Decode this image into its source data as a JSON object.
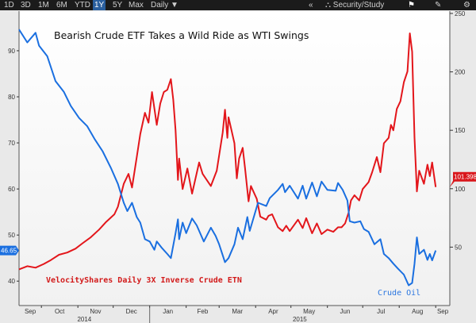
{
  "toolbar": {
    "ranges": [
      "1D",
      "3D",
      "1M",
      "6M",
      "YTD",
      "1Y",
      "5Y",
      "Max"
    ],
    "active_range": "1Y",
    "frequency": "Daily",
    "collapse_label": "«",
    "security_study_label": "Security/Study"
  },
  "chart_data": {
    "type": "line",
    "title": "Bearish Crude ETF Takes a Wild Ride as WTI Swings",
    "x_tick_labels": [
      "Sep",
      "Oct",
      "Nov",
      "Dec",
      "Jan",
      "Feb",
      "Mar",
      "Apr",
      "May",
      "Jun",
      "Jul",
      "Aug",
      "Sep"
    ],
    "x_year_labels": [
      "2014",
      "2015"
    ],
    "xlim": [
      "2014-09-12",
      "2015-09-13"
    ],
    "left_axis": {
      "ticks": [
        40,
        50,
        60,
        70,
        80,
        90
      ],
      "ylim": [
        34.7,
        98.6
      ]
    },
    "right_axis": {
      "ticks": [
        50,
        100,
        150,
        200,
        250
      ],
      "ylim": [
        0,
        252
      ]
    },
    "grid": false,
    "series": [
      {
        "name": "VelocityShares Daily 3X Inverse Crude ETN",
        "axis": "right",
        "color": "#e3161b",
        "last_value_label": "101.398",
        "x": [
          "2014-09-12",
          "2014-09-19",
          "2014-09-26",
          "2014-10-03",
          "2014-10-09",
          "2014-10-16",
          "2014-10-23",
          "2014-10-30",
          "2014-11-05",
          "2014-11-12",
          "2014-11-19",
          "2014-11-25",
          "2014-12-02",
          "2014-12-05",
          "2014-12-10",
          "2014-12-14",
          "2014-12-17",
          "2014-12-21",
          "2014-12-24",
          "2014-12-28",
          "2014-12-31",
          "2015-01-03",
          "2015-01-07",
          "2015-01-10",
          "2015-01-13",
          "2015-01-16",
          "2015-01-19",
          "2015-01-21",
          "2015-01-23",
          "2015-01-25",
          "2015-01-26",
          "2015-01-29",
          "2015-02-02",
          "2015-02-06",
          "2015-02-12",
          "2015-02-15",
          "2015-02-22",
          "2015-02-27",
          "2015-03-04",
          "2015-03-06",
          "2015-03-08",
          "2015-03-09",
          "2015-03-14",
          "2015-03-16",
          "2015-03-18",
          "2015-03-21",
          "2015-03-23",
          "2015-03-26",
          "2015-03-28",
          "2015-04-02",
          "2015-04-05",
          "2015-04-10",
          "2015-04-12",
          "2015-04-15",
          "2015-04-20",
          "2015-04-24",
          "2015-04-27",
          "2015-04-30",
          "2015-05-07",
          "2015-05-11",
          "2015-05-14",
          "2015-05-19",
          "2015-05-23",
          "2015-05-27",
          "2015-06-01",
          "2015-06-06",
          "2015-06-10",
          "2015-06-13",
          "2015-06-16",
          "2015-06-19",
          "2015-06-21",
          "2015-06-24",
          "2015-06-28",
          "2015-07-01",
          "2015-07-06",
          "2015-07-09",
          "2015-07-13",
          "2015-07-16",
          "2015-07-19",
          "2015-07-23",
          "2015-07-25",
          "2015-07-27",
          "2015-07-30",
          "2015-08-02",
          "2015-08-05",
          "2015-08-08",
          "2015-08-10",
          "2015-08-12",
          "2015-08-14",
          "2015-08-16",
          "2015-08-18",
          "2015-08-22",
          "2015-08-25",
          "2015-08-27",
          "2015-08-29",
          "2015-09-01"
        ],
        "values": [
          31.0,
          33.7,
          32.4,
          35.6,
          38.9,
          43.5,
          45.4,
          48.7,
          53.3,
          58.5,
          65.0,
          71.6,
          78.1,
          84.6,
          104.2,
          112.7,
          101.0,
          127.1,
          146.7,
          165.0,
          156.5,
          182.7,
          154.6,
          172.9,
          182.7,
          184.6,
          193.8,
          176.1,
          150.0,
          107.5,
          125.8,
          99.7,
          117.3,
          95.8,
          122.5,
          112.7,
          102.3,
          115.4,
          148.0,
          167.6,
          143.5,
          161.1,
          138.9,
          108.8,
          125.8,
          135.0,
          117.3,
          89.2,
          102.3,
          91.2,
          76.1,
          73.5,
          76.8,
          78.1,
          67.0,
          63.7,
          68.3,
          63.7,
          73.5,
          66.3,
          74.8,
          61.8,
          70.3,
          61.1,
          65.0,
          63.1,
          67.0,
          67.0,
          70.3,
          79.4,
          89.9,
          94.4,
          89.9,
          99.7,
          105.6,
          114.1,
          127.1,
          114.1,
          138.9,
          143.5,
          154.6,
          150.0,
          168.3,
          174.8,
          191.2,
          200.3,
          233.0,
          217.3,
          143.5,
          97.7,
          115.4,
          104.2,
          120.6,
          110.8,
          122.5,
          101.398
        ]
      },
      {
        "name": "Crude Oil",
        "axis": "left",
        "color": "#1a6fe0",
        "last_value_label": "46.65",
        "x": [
          "2014-09-12",
          "2014-09-19",
          "2014-09-26",
          "2014-09-29",
          "2014-10-06",
          "2014-10-13",
          "2014-10-20",
          "2014-10-26",
          "2014-11-02",
          "2014-11-09",
          "2014-11-15",
          "2014-11-22",
          "2014-11-29",
          "2014-12-05",
          "2014-12-10",
          "2014-12-13",
          "2014-12-17",
          "2014-12-21",
          "2014-12-24",
          "2014-12-28",
          "2015-01-01",
          "2015-01-05",
          "2015-01-07",
          "2015-01-11",
          "2015-01-16",
          "2015-01-19",
          "2015-01-23",
          "2015-01-25",
          "2015-01-26",
          "2015-01-29",
          "2015-02-01",
          "2015-02-06",
          "2015-02-10",
          "2015-02-16",
          "2015-02-22",
          "2015-02-26",
          "2015-03-01",
          "2015-03-06",
          "2015-03-09",
          "2015-03-14",
          "2015-03-17",
          "2015-03-21",
          "2015-03-25",
          "2015-03-27",
          "2015-04-03",
          "2015-04-10",
          "2015-04-13",
          "2015-04-20",
          "2015-04-24",
          "2015-04-26",
          "2015-04-30",
          "2015-05-07",
          "2015-05-11",
          "2015-05-14",
          "2015-05-19",
          "2015-05-23",
          "2015-05-27",
          "2015-06-01",
          "2015-06-08",
          "2015-06-10",
          "2015-06-14",
          "2015-06-18",
          "2015-06-20",
          "2015-06-24",
          "2015-06-29",
          "2015-07-02",
          "2015-07-06",
          "2015-07-11",
          "2015-07-16",
          "2015-07-19",
          "2015-07-23",
          "2015-07-27",
          "2015-07-31",
          "2015-08-05",
          "2015-08-09",
          "2015-08-12",
          "2015-08-14",
          "2015-08-16",
          "2015-08-18",
          "2015-08-22",
          "2015-08-25",
          "2015-08-27",
          "2015-08-29",
          "2015-09-01"
        ],
        "values": [
          94.6,
          91.8,
          93.9,
          91.1,
          88.8,
          83.4,
          81.1,
          78.0,
          75.4,
          73.6,
          70.9,
          68.2,
          64.6,
          61.1,
          57.0,
          55.2,
          57.0,
          53.9,
          52.7,
          49.1,
          48.6,
          46.8,
          48.6,
          47.3,
          45.9,
          45.0,
          50.4,
          53.4,
          49.1,
          52.7,
          50.4,
          53.6,
          52.1,
          48.6,
          51.6,
          49.8,
          48.0,
          44.1,
          45.0,
          48.0,
          51.6,
          49.1,
          53.9,
          50.9,
          57.0,
          56.3,
          58.0,
          59.8,
          61.1,
          59.3,
          60.7,
          57.9,
          60.7,
          57.9,
          61.4,
          58.4,
          61.6,
          59.8,
          59.6,
          61.3,
          59.8,
          57.5,
          53.0,
          52.7,
          53.0,
          51.3,
          50.7,
          48.0,
          49.1,
          45.9,
          45.0,
          43.8,
          42.7,
          41.4,
          39.1,
          39.6,
          43.8,
          49.5,
          45.9,
          46.8,
          44.6,
          45.9,
          44.5,
          46.65
        ]
      }
    ]
  }
}
